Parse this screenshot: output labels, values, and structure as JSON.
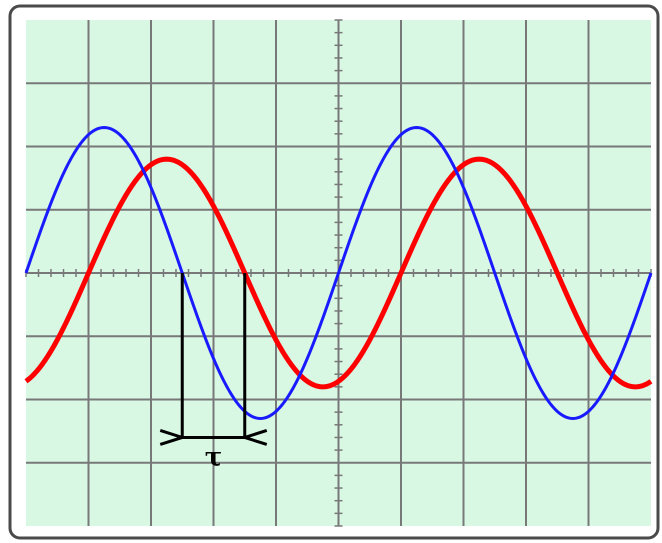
{
  "diagram": {
    "annotation_label": "τ",
    "colors": {
      "frame": "#4a4a4a",
      "screen": "#d8f8e4",
      "grid": "#787878",
      "reference_wave": "#1a1aff",
      "delayed_wave": "#ff0000",
      "marker": "#000000"
    },
    "grid": {
      "divisions_x": 10,
      "divisions_y": 8,
      "minor_ticks_per_division": 5
    },
    "waves": [
      {
        "name": "",
        "shape": "sine",
        "amplitude_div": 2.3,
        "period_div": 5.0,
        "phase_div": 0.0,
        "offset_div": 0.0
      },
      {
        "name": "",
        "shape": "sine",
        "amplitude_div": 1.8,
        "period_div": 5.0,
        "phase_div": 1.0,
        "offset_div": 0.0
      }
    ],
    "delay": {
      "from_div": 2.5,
      "to_div": 3.5
    }
  }
}
